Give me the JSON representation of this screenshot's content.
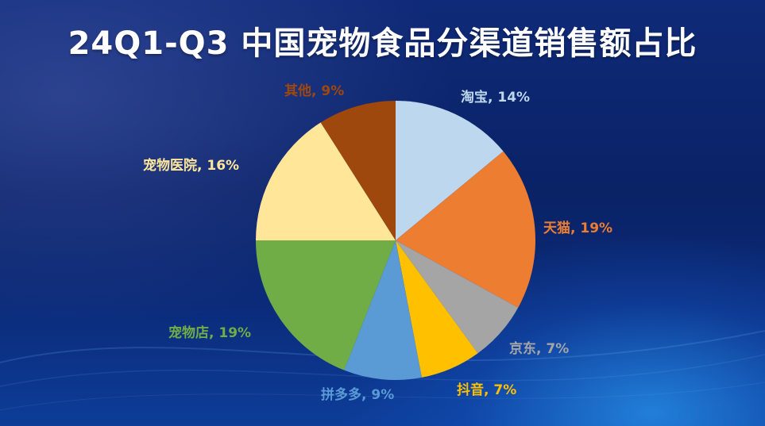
{
  "title": "24Q1-Q3 中国宠物食品分渠道销售额占比",
  "chart_data": {
    "type": "pie",
    "title": "24Q1-Q3 中国宠物食品分渠道销售额占比",
    "start_angle_deg": 0,
    "direction": "clockwise",
    "slices": [
      {
        "label": "淘宝",
        "value": 14,
        "display": "淘宝, 14%",
        "color": "#BDD7EE",
        "label_color": "#BDD7EE"
      },
      {
        "label": "天猫",
        "value": 19,
        "display": "天猫, 19%",
        "color": "#ED7D31",
        "label_color": "#ED7D31"
      },
      {
        "label": "京东",
        "value": 7,
        "display": "京东, 7%",
        "color": "#A5A5A5",
        "label_color": "#A5A5A5"
      },
      {
        "label": "抖音",
        "value": 7,
        "display": "抖音, 7%",
        "color": "#FFC000",
        "label_color": "#FFC000"
      },
      {
        "label": "拼多多",
        "value": 9,
        "display": "拼多多, 9%",
        "color": "#5B9BD5",
        "label_color": "#5B9BD5"
      },
      {
        "label": "宠物店",
        "value": 19,
        "display": "宠物店, 19%",
        "color": "#70AD47",
        "label_color": "#70AD47"
      },
      {
        "label": "宠物医院",
        "value": 16,
        "display": "宠物医院, 16%",
        "color": "#FFE699",
        "label_color": "#FFE699"
      },
      {
        "label": "其他",
        "value": 9,
        "display": "其他, 9%",
        "color": "#9E480E",
        "label_color": "#9E480E"
      }
    ]
  }
}
